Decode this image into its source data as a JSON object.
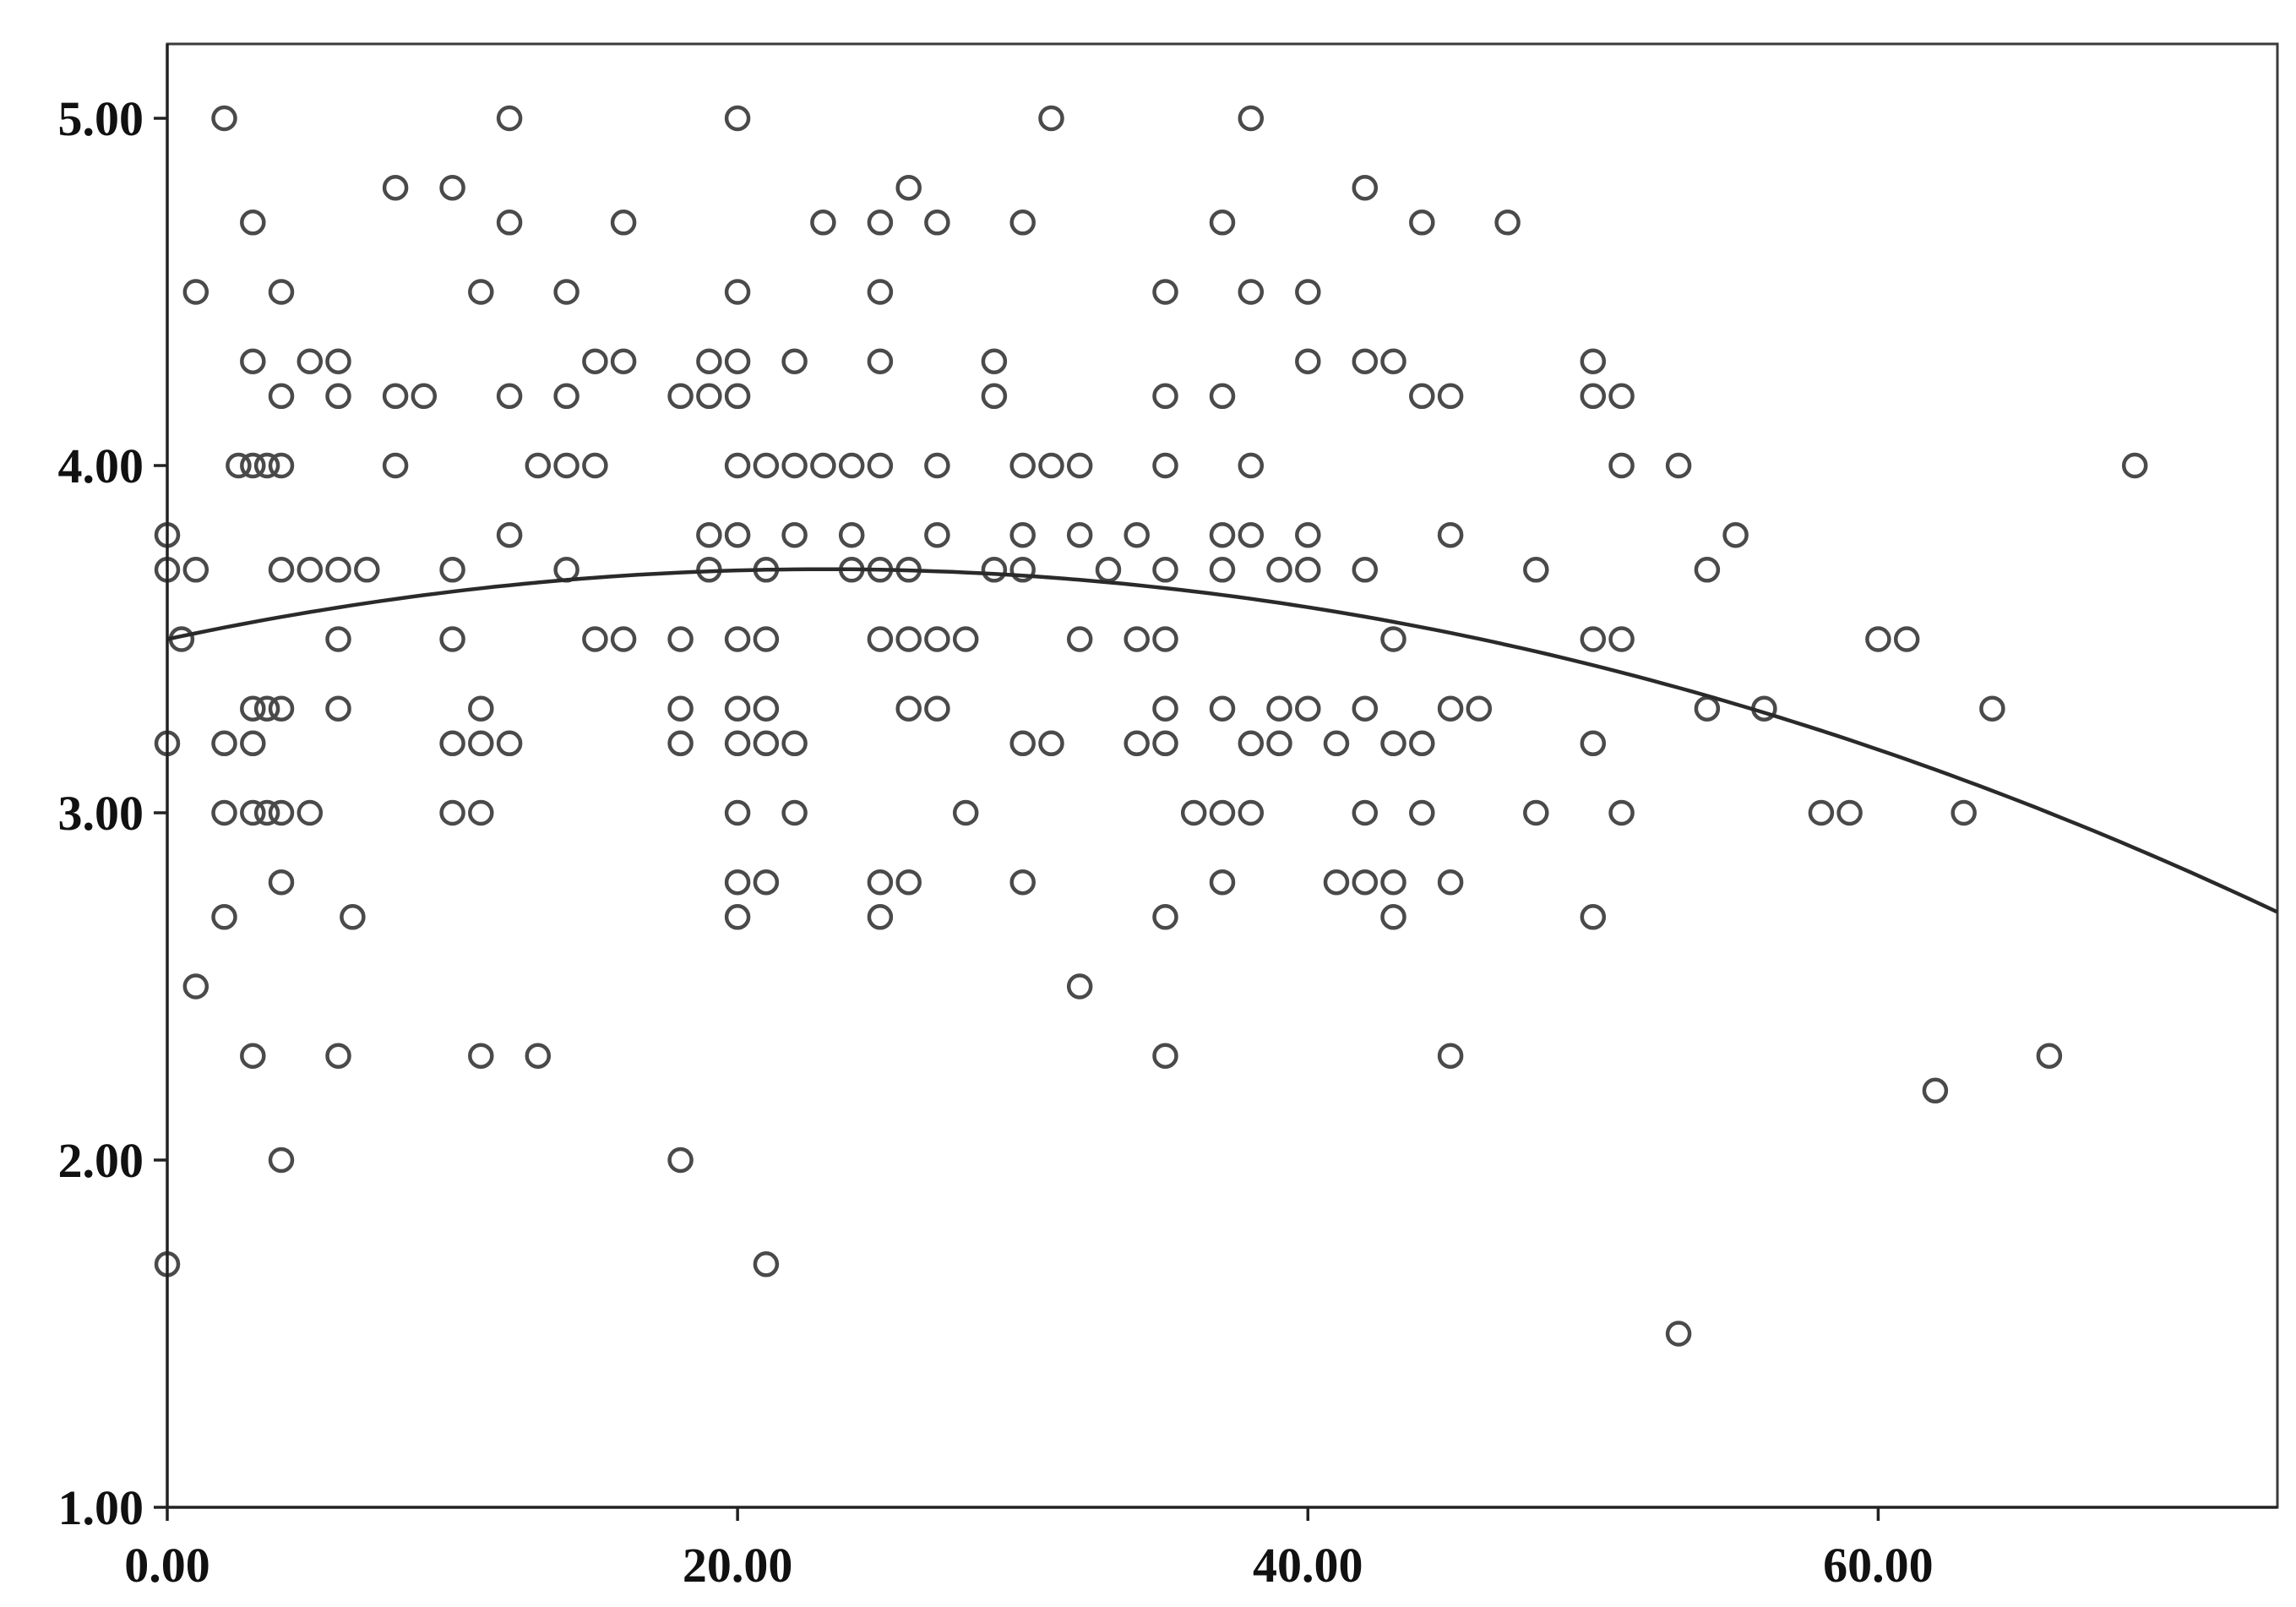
{
  "chart_data": {
    "type": "scatter",
    "title": "",
    "xlabel": "",
    "ylabel": "",
    "xlim": [
      0,
      74
    ],
    "ylim": [
      1,
      5.22
    ],
    "x_ticks": [
      0,
      20,
      40,
      60
    ],
    "y_ticks": [
      1,
      2,
      3,
      4,
      5
    ],
    "x_tick_labels": [
      "0.00",
      "20.00",
      "40.00",
      "60.00"
    ],
    "y_tick_labels": [
      "1.00",
      "2.00",
      "3.00",
      "4.00",
      "5.00"
    ],
    "grid": false,
    "legend": "none",
    "colors": {
      "points": "#4a4a4a",
      "fit": "#2a2a2a",
      "axes": "#222222"
    },
    "fit_curve": {
      "kind": "quadratic",
      "coefficients": [
        3.5,
        0.0175,
        -0.00038
      ]
    },
    "points": [
      [
        0,
        3.8
      ],
      [
        0,
        3.7
      ],
      [
        0,
        3.2
      ],
      [
        0,
        1.7
      ],
      [
        0.5,
        3.5
      ],
      [
        1,
        4.5
      ],
      [
        1,
        3.7
      ],
      [
        1,
        2.5
      ],
      [
        2,
        5.0
      ],
      [
        2,
        3.2
      ],
      [
        2,
        3.0
      ],
      [
        2,
        2.7
      ],
      [
        2.5,
        4.0
      ],
      [
        3,
        4.7
      ],
      [
        3,
        4.3
      ],
      [
        3,
        4.0
      ],
      [
        3,
        3.3
      ],
      [
        3,
        3.2
      ],
      [
        3,
        3.0
      ],
      [
        3,
        2.3
      ],
      [
        3.5,
        4.0
      ],
      [
        3.5,
        3.3
      ],
      [
        3.5,
        3.0
      ],
      [
        4,
        4.5
      ],
      [
        4,
        4.2
      ],
      [
        4,
        4.0
      ],
      [
        4,
        3.7
      ],
      [
        4,
        3.3
      ],
      [
        4,
        3.0
      ],
      [
        4,
        2.8
      ],
      [
        4,
        2.0
      ],
      [
        5,
        4.3
      ],
      [
        5,
        3.7
      ],
      [
        5,
        3.0
      ],
      [
        6,
        4.3
      ],
      [
        6,
        4.2
      ],
      [
        6,
        3.7
      ],
      [
        6,
        3.5
      ],
      [
        6,
        3.3
      ],
      [
        6,
        2.3
      ],
      [
        6.5,
        2.7
      ],
      [
        7,
        3.7
      ],
      [
        8,
        4.8
      ],
      [
        8,
        4.2
      ],
      [
        8,
        4.0
      ],
      [
        9,
        4.2
      ],
      [
        10,
        4.8
      ],
      [
        10,
        3.7
      ],
      [
        10,
        3.5
      ],
      [
        10,
        3.2
      ],
      [
        10,
        3.0
      ],
      [
        11,
        4.5
      ],
      [
        11,
        3.3
      ],
      [
        11,
        3.2
      ],
      [
        11,
        3.0
      ],
      [
        11,
        2.3
      ],
      [
        12,
        5.0
      ],
      [
        12,
        4.7
      ],
      [
        12,
        4.2
      ],
      [
        12,
        3.8
      ],
      [
        12,
        3.2
      ],
      [
        13,
        4.0
      ],
      [
        13,
        2.3
      ],
      [
        14,
        4.5
      ],
      [
        14,
        4.2
      ],
      [
        14,
        4.0
      ],
      [
        14,
        3.7
      ],
      [
        15,
        4.3
      ],
      [
        15,
        4.0
      ],
      [
        15,
        3.5
      ],
      [
        16,
        4.7
      ],
      [
        16,
        4.3
      ],
      [
        16,
        3.5
      ],
      [
        18,
        4.2
      ],
      [
        18,
        3.5
      ],
      [
        18,
        3.3
      ],
      [
        18,
        3.2
      ],
      [
        18,
        2.0
      ],
      [
        19,
        4.3
      ],
      [
        19,
        4.2
      ],
      [
        19,
        3.8
      ],
      [
        19,
        3.7
      ],
      [
        20,
        5.0
      ],
      [
        20,
        4.5
      ],
      [
        20,
        4.3
      ],
      [
        20,
        4.2
      ],
      [
        20,
        4.0
      ],
      [
        20,
        3.8
      ],
      [
        20,
        3.5
      ],
      [
        20,
        3.3
      ],
      [
        20,
        3.2
      ],
      [
        20,
        3.0
      ],
      [
        20,
        2.8
      ],
      [
        20,
        2.7
      ],
      [
        21,
        4.0
      ],
      [
        21,
        3.7
      ],
      [
        21,
        3.5
      ],
      [
        21,
        3.3
      ],
      [
        21,
        3.2
      ],
      [
        21,
        2.8
      ],
      [
        21,
        1.7
      ],
      [
        22,
        4.3
      ],
      [
        22,
        4.0
      ],
      [
        22,
        3.8
      ],
      [
        22,
        3.2
      ],
      [
        22,
        3.0
      ],
      [
        23,
        4.7
      ],
      [
        23,
        4.0
      ],
      [
        24,
        4.0
      ],
      [
        24,
        3.8
      ],
      [
        24,
        3.7
      ],
      [
        25,
        4.7
      ],
      [
        25,
        4.5
      ],
      [
        25,
        4.3
      ],
      [
        25,
        4.0
      ],
      [
        25,
        3.7
      ],
      [
        25,
        3.5
      ],
      [
        25,
        2.8
      ],
      [
        25,
        2.7
      ],
      [
        26,
        4.8
      ],
      [
        26,
        3.7
      ],
      [
        26,
        3.5
      ],
      [
        26,
        3.3
      ],
      [
        26,
        2.8
      ],
      [
        27,
        4.7
      ],
      [
        27,
        4.0
      ],
      [
        27,
        3.8
      ],
      [
        27,
        3.5
      ],
      [
        27,
        3.3
      ],
      [
        28,
        3.5
      ],
      [
        28,
        3.0
      ],
      [
        29,
        4.3
      ],
      [
        29,
        4.2
      ],
      [
        29,
        3.7
      ],
      [
        30,
        4.7
      ],
      [
        30,
        4.0
      ],
      [
        30,
        3.8
      ],
      [
        30,
        3.7
      ],
      [
        30,
        3.2
      ],
      [
        30,
        2.8
      ],
      [
        31,
        5.0
      ],
      [
        31,
        4.0
      ],
      [
        31,
        3.2
      ],
      [
        32,
        4.0
      ],
      [
        32,
        3.8
      ],
      [
        32,
        3.5
      ],
      [
        32,
        2.5
      ],
      [
        33,
        3.7
      ],
      [
        34,
        3.8
      ],
      [
        34,
        3.5
      ],
      [
        34,
        3.2
      ],
      [
        35,
        4.5
      ],
      [
        35,
        4.2
      ],
      [
        35,
        4.0
      ],
      [
        35,
        3.7
      ],
      [
        35,
        3.5
      ],
      [
        35,
        3.3
      ],
      [
        35,
        3.2
      ],
      [
        35,
        2.7
      ],
      [
        35,
        2.3
      ],
      [
        36,
        3.0
      ],
      [
        37,
        4.7
      ],
      [
        37,
        4.2
      ],
      [
        37,
        3.8
      ],
      [
        37,
        3.7
      ],
      [
        37,
        3.3
      ],
      [
        37,
        3.0
      ],
      [
        37,
        2.8
      ],
      [
        38,
        5.0
      ],
      [
        38,
        4.5
      ],
      [
        38,
        4.0
      ],
      [
        38,
        3.8
      ],
      [
        38,
        3.2
      ],
      [
        38,
        3.0
      ],
      [
        39,
        3.7
      ],
      [
        39,
        3.3
      ],
      [
        39,
        3.2
      ],
      [
        40,
        4.5
      ],
      [
        40,
        4.3
      ],
      [
        40,
        3.8
      ],
      [
        40,
        3.7
      ],
      [
        40,
        3.3
      ],
      [
        41,
        3.2
      ],
      [
        41,
        2.8
      ],
      [
        42,
        4.8
      ],
      [
        42,
        4.3
      ],
      [
        42,
        3.7
      ],
      [
        42,
        3.3
      ],
      [
        42,
        3.0
      ],
      [
        42,
        2.8
      ],
      [
        43,
        4.3
      ],
      [
        43,
        3.5
      ],
      [
        43,
        3.2
      ],
      [
        43,
        2.8
      ],
      [
        43,
        2.7
      ],
      [
        44,
        4.7
      ],
      [
        44,
        4.2
      ],
      [
        44,
        3.2
      ],
      [
        44,
        3.0
      ],
      [
        45,
        4.2
      ],
      [
        45,
        3.8
      ],
      [
        45,
        3.3
      ],
      [
        45,
        2.8
      ],
      [
        45,
        2.3
      ],
      [
        46,
        3.3
      ],
      [
        47,
        4.7
      ],
      [
        48,
        3.7
      ],
      [
        48,
        3.0
      ],
      [
        50,
        4.3
      ],
      [
        50,
        4.2
      ],
      [
        50,
        3.5
      ],
      [
        50,
        3.2
      ],
      [
        50,
        2.7
      ],
      [
        51,
        4.2
      ],
      [
        51,
        4.0
      ],
      [
        51,
        3.5
      ],
      [
        51,
        3.0
      ],
      [
        53,
        4.0
      ],
      [
        53,
        1.5
      ],
      [
        54,
        3.7
      ],
      [
        54,
        3.3
      ],
      [
        55,
        3.8
      ],
      [
        56,
        3.3
      ],
      [
        58,
        3.0
      ],
      [
        59,
        3.0
      ],
      [
        60,
        3.5
      ],
      [
        61,
        3.5
      ],
      [
        62,
        2.2
      ],
      [
        63,
        3.0
      ],
      [
        64,
        3.3
      ],
      [
        66,
        2.3
      ],
      [
        69,
        4.0
      ]
    ]
  }
}
